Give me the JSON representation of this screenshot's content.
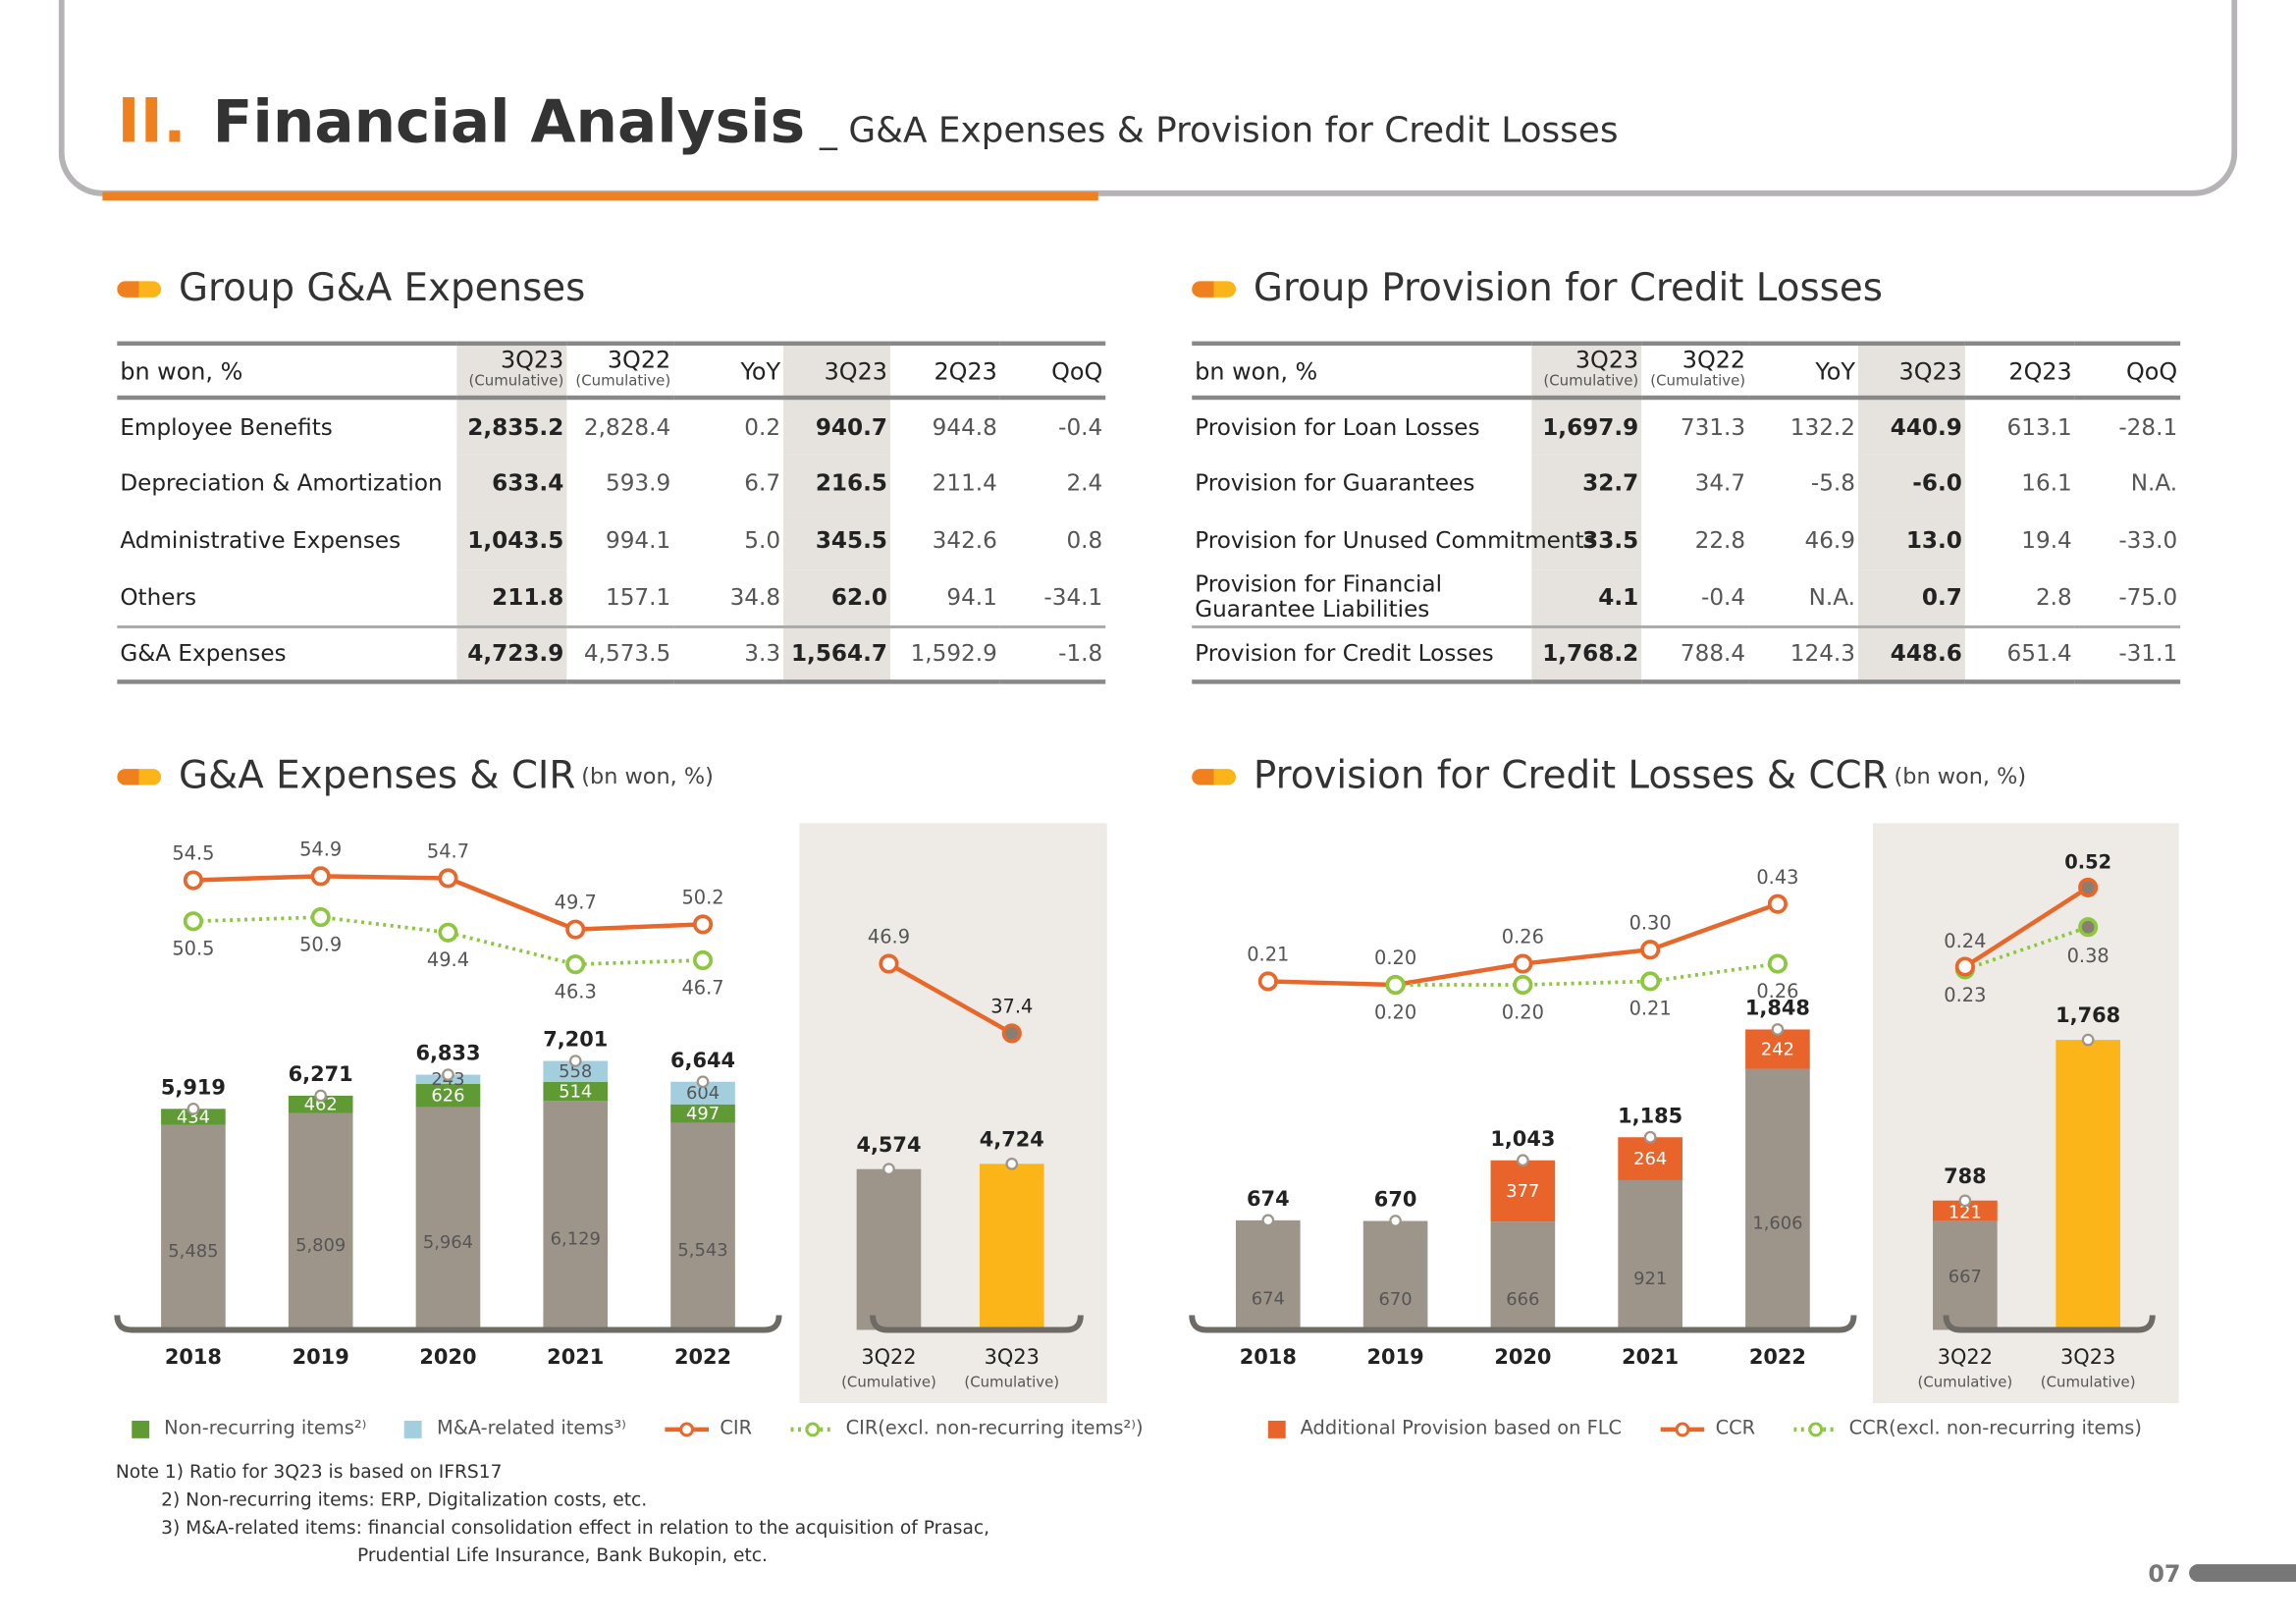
{
  "header": {
    "number": "II.",
    "title": "Financial Analysis",
    "subtitle": "_ G&A Expenses & Provision for Credit Losses"
  },
  "ga_table": {
    "title": "Group G&A Expenses",
    "unit": "bn won, %",
    "columns": [
      {
        "label": "3Q23",
        "sub": "(Cumulative)"
      },
      {
        "label": "3Q22",
        "sub": "(Cumulative)"
      },
      {
        "label": "YoY",
        "sub": ""
      },
      {
        "label": "3Q23",
        "sub": ""
      },
      {
        "label": "2Q23",
        "sub": ""
      },
      {
        "label": "QoQ",
        "sub": ""
      }
    ],
    "rows": [
      {
        "label": "Employee Benefits",
        "values": [
          "2,835.2",
          "2,828.4",
          "0.2",
          "940.7",
          "944.8",
          "-0.4"
        ]
      },
      {
        "label": "Depreciation & Amortization",
        "values": [
          "633.4",
          "593.9",
          "6.7",
          "216.5",
          "211.4",
          "2.4"
        ]
      },
      {
        "label": "Administrative Expenses",
        "values": [
          "1,043.5",
          "994.1",
          "5.0",
          "345.5",
          "342.6",
          "0.8"
        ]
      },
      {
        "label": "Others",
        "values": [
          "211.8",
          "157.1",
          "34.8",
          "62.0",
          "94.1",
          "-34.1"
        ]
      },
      {
        "label": "G&A Expenses",
        "values": [
          "4,723.9",
          "4,573.5",
          "3.3",
          "1,564.7",
          "1,592.9",
          "-1.8"
        ],
        "total": true
      }
    ]
  },
  "pcl_table": {
    "title": "Group Provision for Credit Losses",
    "unit": "bn won, %",
    "columns": [
      {
        "label": "3Q23",
        "sub": "(Cumulative)"
      },
      {
        "label": "3Q22",
        "sub": "(Cumulative)"
      },
      {
        "label": "YoY",
        "sub": ""
      },
      {
        "label": "3Q23",
        "sub": ""
      },
      {
        "label": "2Q23",
        "sub": ""
      },
      {
        "label": "QoQ",
        "sub": ""
      }
    ],
    "rows": [
      {
        "label": "Provision for Loan Losses",
        "values": [
          "1,697.9",
          "731.3",
          "132.2",
          "440.9",
          "613.1",
          "-28.1"
        ]
      },
      {
        "label": "Provision for Guarantees",
        "values": [
          "32.7",
          "34.7",
          "-5.8",
          "-6.0",
          "16.1",
          "N.A."
        ]
      },
      {
        "label": "Provision for Unused Commitments",
        "values": [
          "33.5",
          "22.8",
          "46.9",
          "13.0",
          "19.4",
          "-33.0"
        ]
      },
      {
        "label": "Provision for Financial Guarantee Liabilities",
        "values": [
          "4.1",
          "-0.4",
          "N.A.",
          "0.7",
          "2.8",
          "-75.0"
        ]
      },
      {
        "label": "Provision for Credit Losses",
        "values": [
          "1,768.2",
          "788.4",
          "124.3",
          "448.6",
          "651.4",
          "-31.1"
        ],
        "total": true
      }
    ]
  },
  "chart_data": [
    {
      "type": "bar",
      "title": "G&A Expenses & CIR",
      "unit": "(bn won, %)",
      "categories": [
        "2018",
        "2019",
        "2020",
        "2021",
        "2022"
      ],
      "totals": [
        "5,919",
        "6,271",
        "6,833",
        "7,201",
        "6,644"
      ],
      "series": [
        {
          "name": "base",
          "values": [
            5485,
            5809,
            5964,
            6129,
            5543
          ],
          "color": "#9E958A"
        },
        {
          "name": "Non-recurring items2)",
          "values": [
            434,
            462,
            626,
            514,
            497
          ],
          "color": "#5F9A35"
        },
        {
          "name": "M&A-related items3)",
          "values": [
            null,
            null,
            243,
            558,
            604
          ],
          "color": "#A3CEDD"
        }
      ],
      "lines": [
        {
          "name": "CIR",
          "values": [
            54.5,
            54.9,
            54.7,
            49.7,
            50.2
          ],
          "color": "#E8672A"
        },
        {
          "name": "CIR(excl. non-recurring items2))",
          "values": [
            50.5,
            50.9,
            49.4,
            46.3,
            46.7
          ],
          "color": "#8DC63F"
        }
      ],
      "cumulative": {
        "categories": [
          "3Q22",
          "3Q23"
        ],
        "sub": "(Cumulative)",
        "values": [
          4574,
          4724
        ],
        "labels": [
          "4,574",
          "4,724"
        ],
        "colors": [
          "#9E958A",
          "#FBB518"
        ],
        "cir": [
          46.9,
          37.4
        ]
      }
    },
    {
      "type": "bar",
      "title": "Provision for Credit Losses & CCR",
      "unit": "(bn won, %)",
      "categories": [
        "2018",
        "2019",
        "2020",
        "2021",
        "2022"
      ],
      "totals": [
        "674",
        "670",
        "1,043",
        "1,185",
        "1,848"
      ],
      "series": [
        {
          "name": "base",
          "values": [
            674,
            670,
            666,
            921,
            1606
          ],
          "color": "#9E958A"
        },
        {
          "name": "Additional Provision based on FLC",
          "values": [
            null,
            null,
            377,
            264,
            242
          ],
          "color": "#E9642A"
        }
      ],
      "lines": [
        {
          "name": "CCR",
          "values": [
            0.21,
            0.2,
            0.26,
            0.3,
            0.43
          ],
          "color": "#E8672A"
        },
        {
          "name": "CCR(excl. non-recurring items)",
          "values": [
            null,
            0.2,
            0.2,
            0.21,
            0.26
          ],
          "color": "#8DC63F"
        }
      ],
      "cumulative": {
        "categories": [
          "3Q22",
          "3Q23"
        ],
        "sub": "(Cumulative)",
        "values": [
          788,
          1768
        ],
        "labels": [
          "788",
          "1,768"
        ],
        "flc": [
          121,
          null
        ],
        "flc_base": [
          667,
          null
        ],
        "colors": [
          "#9E958A",
          "#FBB518"
        ],
        "ccr": [
          0.24,
          0.52
        ],
        "ccr_excl": [
          0.23,
          0.38
        ]
      }
    }
  ],
  "legend_left": [
    "Non-recurring items²⁾",
    "M&A-related items³⁾",
    "CIR",
    "CIR(excl. non-recurring items²⁾)"
  ],
  "legend_right": [
    "Additional Provision based on FLC",
    "CCR",
    "CCR(excl. non-recurring items)"
  ],
  "notes": [
    "Note 1) Ratio for 3Q23 is based on IFRS17",
    "2) Non-recurring items: ERP, Digitalization costs, etc.",
    "3) M&A-related items: financial consolidation effect in relation to the acquisition of Prasac,",
    "Prudential Life Insurance, Bank Bukopin, etc."
  ],
  "page_number": "07"
}
